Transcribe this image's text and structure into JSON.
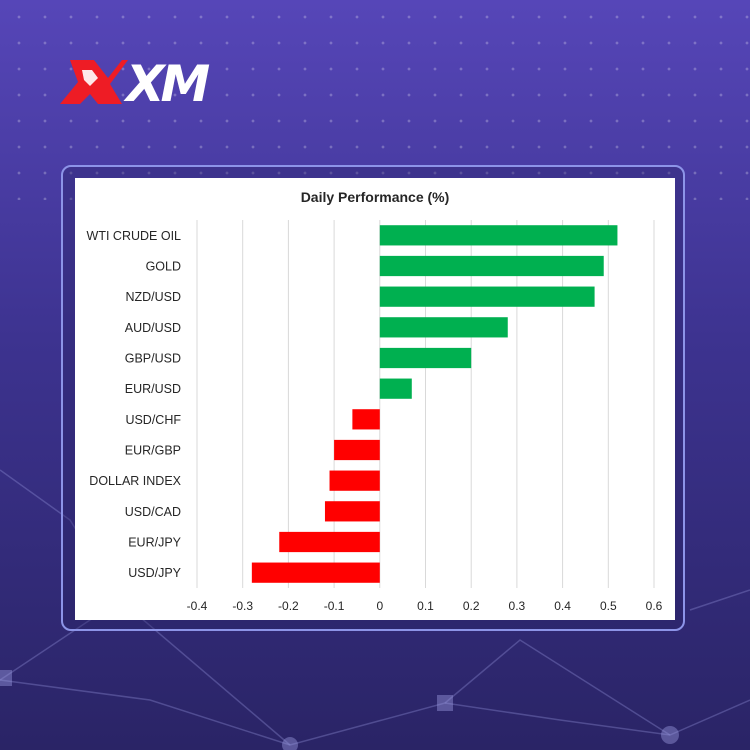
{
  "brand": {
    "logo_text": "XM",
    "logo_color": "#ee1c25"
  },
  "colors": {
    "positive": "#00b050",
    "negative": "#ff0000",
    "grid": "#d9d9d9",
    "frame": "#8d94e8"
  },
  "chart_data": {
    "type": "bar",
    "orientation": "horizontal",
    "title": "Daily Performance  (%)",
    "categories": [
      "WTI CRUDE OIL",
      "GOLD",
      "NZD/USD",
      "AUD/USD",
      "GBP/USD",
      "EUR/USD",
      "USD/CHF",
      "EUR/GBP",
      "DOLLAR INDEX",
      "USD/CAD",
      "EUR/JPY",
      "USD/JPY"
    ],
    "values": [
      0.52,
      0.49,
      0.47,
      0.28,
      0.2,
      0.07,
      -0.06,
      -0.1,
      -0.11,
      -0.12,
      -0.22,
      -0.28
    ],
    "xlim": [
      -0.4,
      0.6
    ],
    "xticks": [
      "-0.4",
      "-0.3",
      "-0.2",
      "-0.1",
      "0",
      "0.1",
      "0.2",
      "0.3",
      "0.4",
      "0.5",
      "0.6"
    ],
    "grid": "vertical",
    "legend": "none"
  }
}
